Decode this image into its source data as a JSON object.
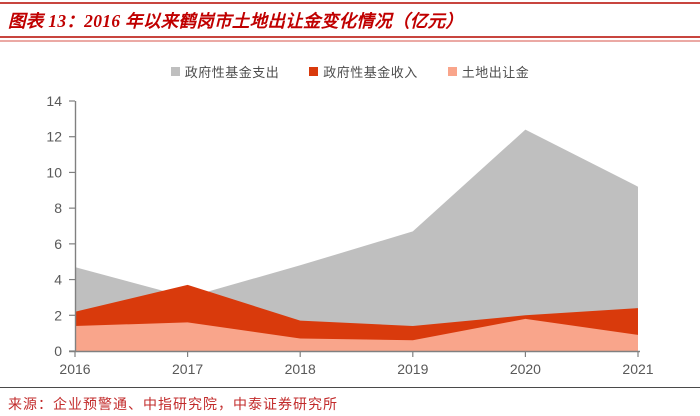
{
  "header": {
    "title": "图表 13：2016 年以来鹤岗市土地出让金变化情况（亿元）"
  },
  "source": {
    "text": "来源：企业预警通、中指研究院，中泰证券研究所"
  },
  "colors": {
    "title_red": "#c00000",
    "rule_dark_red": "#c8453f",
    "rule_light_red": "#eba9a4",
    "axis_line": "#808080",
    "axis_text": "#595959",
    "legend_text": "#4d4d4d",
    "source_red": "#c22b2b",
    "footer_rule": "#4a4a4a"
  },
  "chart_data": {
    "type": "area",
    "title": "2016 年以来鹤岗市土地出让金变化情况（亿元）",
    "categories": [
      "2016",
      "2017",
      "2018",
      "2019",
      "2020",
      "2021"
    ],
    "series": [
      {
        "name": "政府性基金支出",
        "color": "#bfbfbf",
        "values": [
          4.7,
          3.0,
          4.8,
          6.7,
          12.4,
          9.2
        ]
      },
      {
        "name": "政府性基金收入",
        "color": "#d93a0c",
        "values": [
          2.2,
          3.7,
          1.7,
          1.4,
          2.0,
          2.4
        ]
      },
      {
        "name": "土地出让金",
        "color": "#f9a58b",
        "values": [
          1.4,
          1.6,
          0.7,
          0.6,
          1.8,
          0.9
        ]
      }
    ],
    "ylim": [
      0,
      14
    ],
    "yticks": [
      0,
      2,
      4,
      6,
      8,
      10,
      12,
      14
    ],
    "grid": false,
    "legend_position": "top",
    "overlap_mode": "layered-not-stacked"
  }
}
